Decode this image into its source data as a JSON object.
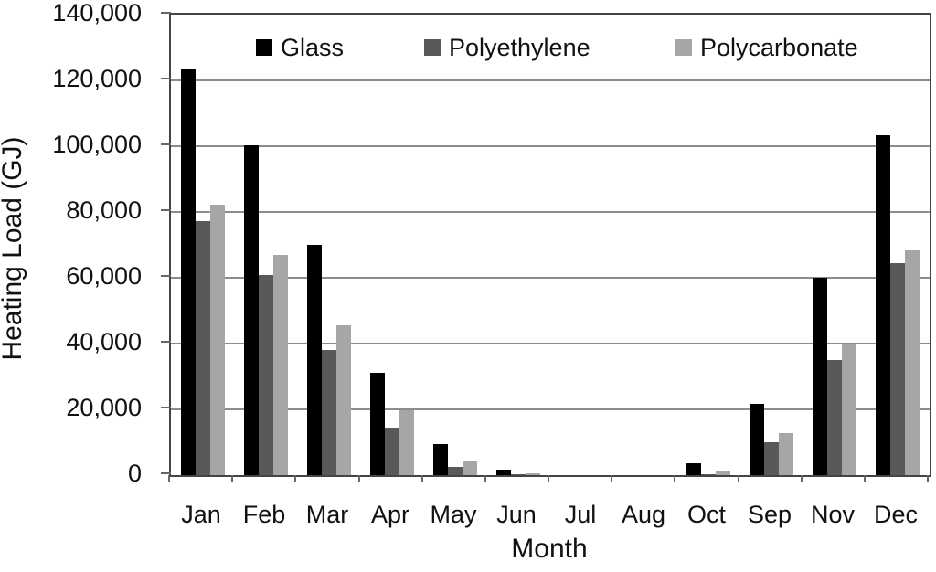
{
  "chart_data": {
    "type": "bar",
    "title": "",
    "xlabel": "Month",
    "ylabel": "Heating Load (GJ)",
    "ylim": [
      0,
      140000
    ],
    "ytick_step": 20000,
    "grid": true,
    "legend_position": "top-inside",
    "categories": [
      "Jan",
      "Feb",
      "Mar",
      "Apr",
      "May",
      "Jun",
      "Jul",
      "Aug",
      "Oct",
      "Sep",
      "Nov",
      "Dec"
    ],
    "series": [
      {
        "name": "Glass",
        "color": "#000000",
        "values": [
          123500,
          100400,
          70000,
          31200,
          9500,
          1700,
          0,
          0,
          3600,
          21700,
          60100,
          103400
        ]
      },
      {
        "name": "Polyethylene",
        "color": "#595959",
        "values": [
          77100,
          60900,
          38100,
          14400,
          2600,
          150,
          0,
          0,
          400,
          9900,
          35100,
          64400
        ]
      },
      {
        "name": "Polycarbonate",
        "color": "#a6a6a6",
        "values": [
          82100,
          66900,
          45600,
          19800,
          4400,
          600,
          0,
          0,
          1100,
          12800,
          39600,
          68400
        ]
      }
    ]
  },
  "colors": {
    "gridline": "#8c8c8c",
    "axis": "#444444",
    "text": "#111111",
    "background": "#ffffff"
  }
}
